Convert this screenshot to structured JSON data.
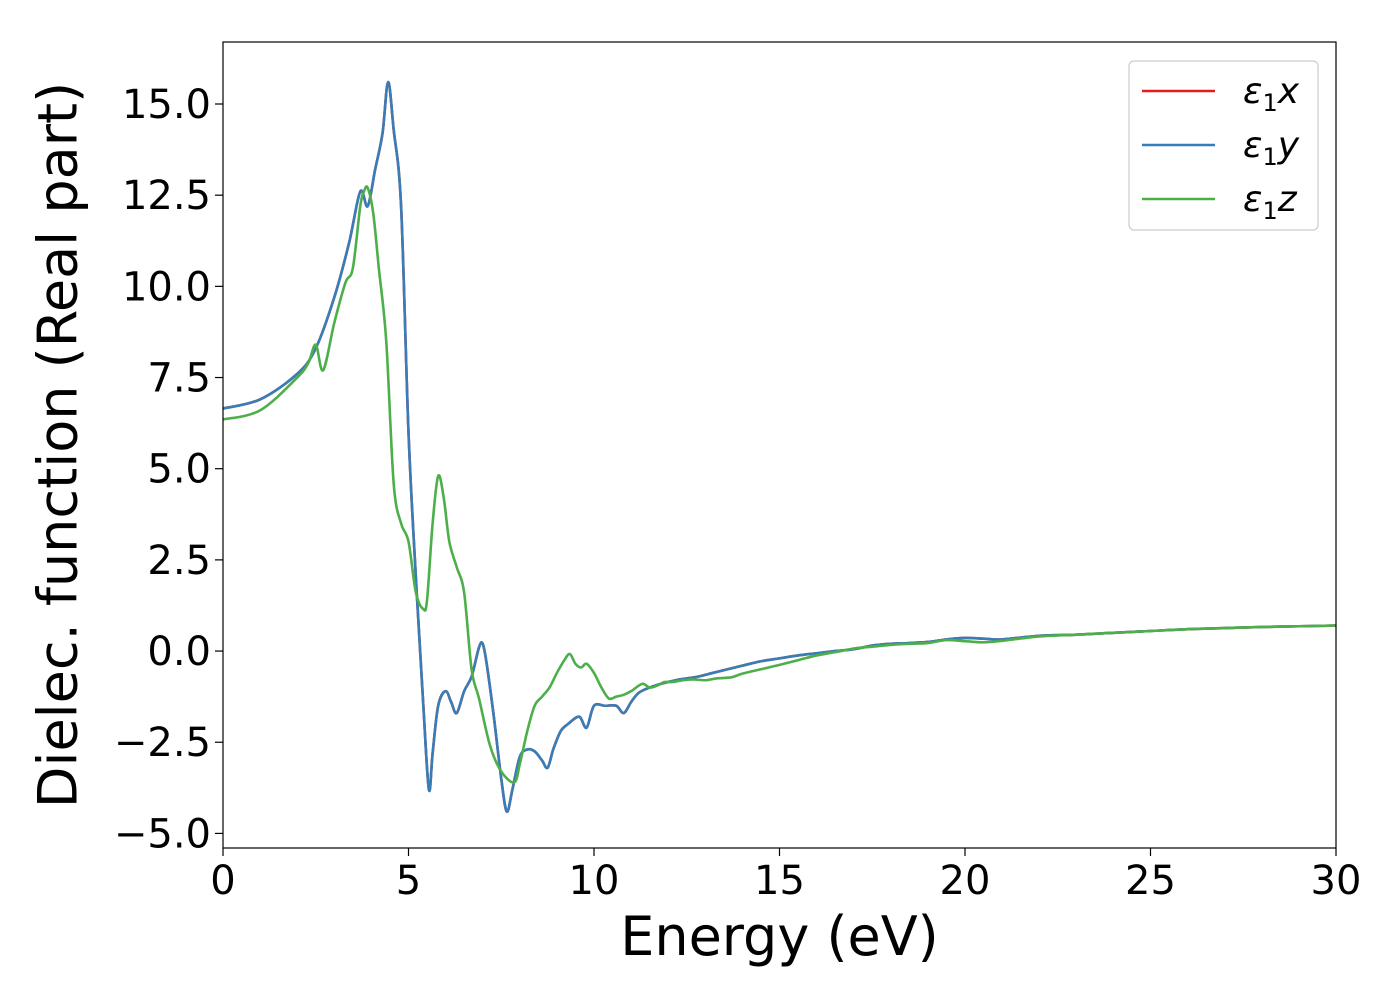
{
  "chart_data": {
    "type": "line",
    "title": "",
    "xlabel": "Energy (eV)",
    "ylabel": "Dielec. function (Real part)",
    "xlim": [
      0,
      30
    ],
    "ylim": [
      -5.4,
      16.7
    ],
    "xticks": [
      0,
      5,
      10,
      15,
      20,
      25,
      30
    ],
    "xtick_labels": [
      "0",
      "5",
      "10",
      "15",
      "20",
      "25",
      "30"
    ],
    "yticks": [
      -5.0,
      -2.5,
      0.0,
      2.5,
      5.0,
      7.5,
      10.0,
      12.5,
      15.0
    ],
    "ytick_labels": [
      "−5.0",
      "−2.5",
      "0.0",
      "2.5",
      "5.0",
      "7.5",
      "10.0",
      "12.5",
      "15.0"
    ],
    "grid": false,
    "legend": {
      "position": "top-right",
      "entries": [
        {
          "base": "ε",
          "sub": "1",
          "var": "x"
        },
        {
          "base": "ε",
          "sub": "1",
          "var": "y"
        },
        {
          "base": "ε",
          "sub": "1",
          "var": "z"
        }
      ]
    },
    "series": [
      {
        "name": "ε1x",
        "color": "#e41a1c",
        "x": [
          0,
          1,
          2,
          2.5,
          3,
          3.4,
          3.7,
          3.9,
          4.1,
          4.3,
          4.45,
          4.6,
          4.8,
          5.0,
          5.2,
          5.4,
          5.55,
          5.65,
          5.8,
          6.0,
          6.15,
          6.3,
          6.5,
          6.7,
          6.9,
          7.0,
          7.1,
          7.3,
          7.5,
          7.65,
          7.8,
          8.0,
          8.2,
          8.4,
          8.6,
          8.75,
          8.9,
          9.1,
          9.3,
          9.6,
          9.8,
          10.0,
          10.3,
          10.6,
          10.8,
          11.0,
          11.2,
          11.5,
          11.8,
          12.2,
          12.5,
          12.8,
          13.2,
          13.6,
          14.0,
          14.5,
          15.0,
          15.5,
          16.0,
          16.5,
          17.0,
          17.5,
          18.0,
          18.5,
          19.0,
          19.5,
          20.0,
          20.5,
          21.0,
          22.0,
          23.0,
          24.0,
          25.0,
          26.0,
          27.0,
          28.0,
          29.0,
          30.0
        ],
        "y": [
          6.65,
          6.9,
          7.6,
          8.3,
          9.7,
          11.2,
          12.6,
          12.2,
          13.2,
          14.2,
          15.6,
          14.3,
          12.2,
          6.0,
          2.0,
          -1.5,
          -3.8,
          -2.8,
          -1.5,
          -1.1,
          -1.4,
          -1.7,
          -1.1,
          -0.7,
          0.1,
          0.2,
          -0.3,
          -1.8,
          -3.5,
          -4.4,
          -3.8,
          -2.9,
          -2.7,
          -2.75,
          -3.0,
          -3.2,
          -2.7,
          -2.2,
          -2.0,
          -1.8,
          -2.1,
          -1.5,
          -1.5,
          -1.5,
          -1.7,
          -1.4,
          -1.15,
          -1.0,
          -0.9,
          -0.8,
          -0.75,
          -0.7,
          -0.6,
          -0.5,
          -0.4,
          -0.28,
          -0.2,
          -0.12,
          -0.06,
          0.0,
          0.05,
          0.15,
          0.2,
          0.22,
          0.25,
          0.32,
          0.36,
          0.34,
          0.32,
          0.42,
          0.45,
          0.5,
          0.55,
          0.6,
          0.63,
          0.66,
          0.68,
          0.7
        ]
      },
      {
        "name": "ε1y",
        "color": "#377eb8",
        "x": [
          0,
          1,
          2,
          2.5,
          3,
          3.4,
          3.7,
          3.9,
          4.1,
          4.3,
          4.45,
          4.6,
          4.8,
          5.0,
          5.2,
          5.4,
          5.55,
          5.65,
          5.8,
          6.0,
          6.15,
          6.3,
          6.5,
          6.7,
          6.9,
          7.0,
          7.1,
          7.3,
          7.5,
          7.65,
          7.8,
          8.0,
          8.2,
          8.4,
          8.6,
          8.75,
          8.9,
          9.1,
          9.3,
          9.6,
          9.8,
          10.0,
          10.3,
          10.6,
          10.8,
          11.0,
          11.2,
          11.5,
          11.8,
          12.2,
          12.5,
          12.8,
          13.2,
          13.6,
          14.0,
          14.5,
          15.0,
          15.5,
          16.0,
          16.5,
          17.0,
          17.5,
          18.0,
          18.5,
          19.0,
          19.5,
          20.0,
          20.5,
          21.0,
          22.0,
          23.0,
          24.0,
          25.0,
          26.0,
          27.0,
          28.0,
          29.0,
          30.0
        ],
        "y": [
          6.65,
          6.9,
          7.6,
          8.3,
          9.7,
          11.2,
          12.6,
          12.2,
          13.2,
          14.2,
          15.6,
          14.3,
          12.2,
          6.0,
          2.0,
          -1.5,
          -3.8,
          -2.8,
          -1.5,
          -1.1,
          -1.4,
          -1.7,
          -1.1,
          -0.7,
          0.1,
          0.2,
          -0.3,
          -1.8,
          -3.5,
          -4.4,
          -3.8,
          -2.9,
          -2.7,
          -2.75,
          -3.0,
          -3.2,
          -2.7,
          -2.2,
          -2.0,
          -1.8,
          -2.1,
          -1.5,
          -1.5,
          -1.5,
          -1.7,
          -1.4,
          -1.15,
          -1.0,
          -0.9,
          -0.8,
          -0.75,
          -0.7,
          -0.6,
          -0.5,
          -0.4,
          -0.28,
          -0.2,
          -0.12,
          -0.06,
          0.0,
          0.05,
          0.15,
          0.2,
          0.22,
          0.25,
          0.32,
          0.36,
          0.34,
          0.32,
          0.42,
          0.45,
          0.5,
          0.55,
          0.6,
          0.63,
          0.66,
          0.68,
          0.7
        ]
      },
      {
        "name": "ε1z",
        "color": "#4daf4a",
        "x": [
          0,
          1,
          2,
          2.3,
          2.5,
          2.7,
          3.0,
          3.3,
          3.5,
          3.7,
          3.8,
          3.9,
          4.05,
          4.2,
          4.4,
          4.6,
          4.8,
          5.0,
          5.2,
          5.4,
          5.5,
          5.65,
          5.8,
          5.95,
          6.1,
          6.3,
          6.5,
          6.7,
          6.9,
          7.2,
          7.5,
          7.85,
          8.0,
          8.2,
          8.4,
          8.6,
          8.8,
          9.0,
          9.2,
          9.35,
          9.5,
          9.65,
          9.8,
          10.0,
          10.2,
          10.4,
          10.6,
          10.8,
          11.0,
          11.3,
          11.5,
          11.7,
          11.9,
          12.1,
          12.4,
          12.7,
          13.0,
          13.3,
          13.7,
          14.0,
          14.5,
          15.0,
          15.5,
          16.0,
          16.5,
          17.0,
          17.5,
          18.0,
          18.5,
          19.0,
          19.5,
          20.0,
          20.5,
          21.0,
          22.0,
          23.0,
          24.0,
          25.0,
          26.0,
          27.0,
          28.0,
          29.0,
          30.0
        ],
        "y": [
          6.35,
          6.6,
          7.5,
          7.9,
          8.4,
          7.7,
          9.0,
          10.1,
          10.5,
          12.2,
          12.6,
          12.7,
          12.0,
          10.5,
          8.5,
          4.6,
          3.5,
          3.0,
          1.6,
          1.15,
          1.4,
          3.5,
          4.8,
          4.2,
          3.0,
          2.3,
          1.6,
          -0.5,
          -1.3,
          -2.6,
          -3.3,
          -3.6,
          -3.1,
          -2.2,
          -1.5,
          -1.25,
          -1.0,
          -0.6,
          -0.25,
          -0.08,
          -0.35,
          -0.45,
          -0.35,
          -0.6,
          -1.0,
          -1.3,
          -1.25,
          -1.2,
          -1.1,
          -0.9,
          -1.0,
          -0.95,
          -0.85,
          -0.85,
          -0.8,
          -0.78,
          -0.8,
          -0.75,
          -0.72,
          -0.62,
          -0.5,
          -0.38,
          -0.25,
          -0.12,
          -0.03,
          0.07,
          0.12,
          0.17,
          0.2,
          0.22,
          0.3,
          0.27,
          0.24,
          0.28,
          0.4,
          0.45,
          0.5,
          0.55,
          0.6,
          0.63,
          0.66,
          0.68,
          0.7
        ]
      }
    ]
  }
}
